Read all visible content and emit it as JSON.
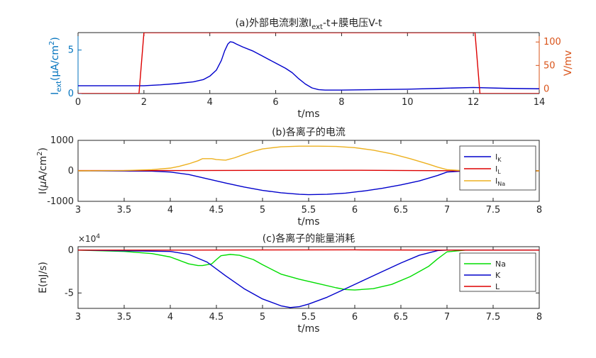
{
  "chart_data": [
    {
      "type": "line",
      "title_main": "(a)外部电流刺激I",
      "title_sub": "ext",
      "title_rest": "-t+膜电压V-t",
      "xlabel": "t/ms",
      "ylabel_left": {
        "base": "I",
        "sub": "ext",
        "unit": "(μA/cm",
        "sup": "2",
        "close": ")"
      },
      "ylabel_right": "V/mv",
      "xlim": [
        0,
        14
      ],
      "ylim_left": [
        0,
        7
      ],
      "ylim_right": [
        -10,
        120
      ],
      "xticks": [
        0,
        2,
        4,
        6,
        8,
        10,
        12,
        14
      ],
      "yticks_left": [
        0,
        5
      ],
      "yticks_right": [
        0,
        50,
        100
      ],
      "colors": {
        "left": "#0072bd",
        "right": "#d95319",
        "series_iext": "#0000cc",
        "series_v": "#dd0000"
      },
      "series": [
        {
          "key": "iext",
          "axis": "left",
          "x": [
            0,
            1,
            2,
            2.5,
            3,
            3.5,
            3.8,
            4.0,
            4.2,
            4.35,
            4.45,
            4.55,
            4.62,
            4.7,
            4.8,
            5.0,
            5.3,
            5.6,
            6.0,
            6.3,
            6.5,
            6.7,
            6.9,
            7.1,
            7.3,
            7.5,
            8,
            9,
            10,
            11,
            12,
            13,
            14
          ],
          "y": [
            0.9,
            0.9,
            0.9,
            1.0,
            1.15,
            1.35,
            1.6,
            2.0,
            2.7,
            3.8,
            4.9,
            5.7,
            5.95,
            5.9,
            5.7,
            5.35,
            4.9,
            4.3,
            3.5,
            2.9,
            2.4,
            1.7,
            1.1,
            0.65,
            0.45,
            0.4,
            0.4,
            0.45,
            0.5,
            0.6,
            0.7,
            0.6,
            0.55
          ]
        },
        {
          "key": "v",
          "axis": "right",
          "x": [
            0,
            1.85,
            2.0,
            2.05,
            11.95,
            12.05,
            12.2,
            14
          ],
          "y": [
            -10,
            -10,
            120,
            120,
            120,
            120,
            -10,
            -10
          ]
        }
      ]
    },
    {
      "type": "line",
      "title": "(b)各离子的电流",
      "xlabel": "t/ms",
      "ylabel": {
        "pre": "I(",
        "mu": "μ",
        "unit": "A/cm",
        "sup": "2",
        "close": ")"
      },
      "xlim": [
        3,
        8
      ],
      "ylim": [
        -1000,
        1000
      ],
      "xticks": [
        3,
        3.5,
        4,
        4.5,
        5,
        5.5,
        6,
        6.5,
        7,
        7.5,
        8
      ],
      "yticks": [
        -1000,
        0,
        1000
      ],
      "legend": {
        "placement": "right",
        "entries": [
          {
            "base": "I",
            "sub": "K"
          },
          {
            "base": "I",
            "sub": "L"
          },
          {
            "base": "I",
            "sub": "Na"
          }
        ]
      },
      "series": [
        {
          "key": "IK",
          "color": "#0000cc",
          "x": [
            3,
            3.8,
            4.0,
            4.2,
            4.4,
            4.6,
            4.8,
            5.0,
            5.2,
            5.4,
            5.5,
            5.7,
            5.9,
            6.1,
            6.3,
            6.5,
            6.7,
            6.9,
            7.0,
            7.2,
            8
          ],
          "y": [
            0,
            -10,
            -40,
            -120,
            -260,
            -400,
            -530,
            -640,
            -720,
            -770,
            -780,
            -770,
            -730,
            -660,
            -570,
            -460,
            -330,
            -150,
            -40,
            0,
            0
          ]
        },
        {
          "key": "IL",
          "color": "#dd0000",
          "x": [
            3,
            4,
            5,
            6,
            7,
            7.2,
            8
          ],
          "y": [
            10,
            10,
            15,
            20,
            5,
            0,
            0
          ]
        },
        {
          "key": "INa",
          "color": "#edb120",
          "x": [
            3,
            3.5,
            3.8,
            4.0,
            4.1,
            4.2,
            4.3,
            4.35,
            4.45,
            4.5,
            4.6,
            4.7,
            4.8,
            4.9,
            5.0,
            5.2,
            5.4,
            5.6,
            5.8,
            6.0,
            6.2,
            6.4,
            6.6,
            6.8,
            6.9,
            7.0,
            7.2,
            8
          ],
          "y": [
            0,
            10,
            40,
            90,
            150,
            230,
            330,
            400,
            400,
            370,
            350,
            430,
            540,
            640,
            720,
            790,
            810,
            810,
            800,
            760,
            680,
            560,
            400,
            220,
            120,
            40,
            0,
            0
          ]
        }
      ]
    },
    {
      "type": "line",
      "title": "(c)各离子的能量消耗",
      "xlabel": "t/ms",
      "ylabel": "E(nJ/s)",
      "exponent": {
        "base": "×10",
        "sup": "4"
      },
      "xlim": [
        3,
        8
      ],
      "ylim": [
        -6.8,
        0.4
      ],
      "xticks": [
        3,
        3.5,
        4,
        4.5,
        5,
        5.5,
        6,
        6.5,
        7,
        7.5,
        8
      ],
      "yticks": [
        -5,
        0
      ],
      "legend": {
        "placement": "right",
        "entries": [
          {
            "base": "Na"
          },
          {
            "base": "K"
          },
          {
            "base": "L"
          }
        ]
      },
      "series": [
        {
          "key": "Na",
          "color": "#00dd00",
          "x": [
            3,
            3.5,
            3.8,
            4.0,
            4.1,
            4.2,
            4.3,
            4.35,
            4.45,
            4.5,
            4.55,
            4.65,
            4.75,
            4.9,
            5.0,
            5.2,
            5.4,
            5.6,
            5.8,
            5.9,
            6.0,
            6.2,
            6.4,
            6.6,
            6.8,
            6.9,
            7.0,
            7.2,
            8
          ],
          "y": [
            0,
            -0.15,
            -0.4,
            -0.8,
            -1.2,
            -1.6,
            -1.8,
            -1.8,
            -1.6,
            -1.1,
            -0.65,
            -0.5,
            -0.6,
            -1.1,
            -1.7,
            -2.8,
            -3.4,
            -3.9,
            -4.4,
            -4.6,
            -4.65,
            -4.5,
            -4.0,
            -3.1,
            -1.9,
            -1.0,
            -0.2,
            0,
            0
          ]
        },
        {
          "key": "K",
          "color": "#0000cc",
          "x": [
            3,
            4.0,
            4.2,
            4.4,
            4.6,
            4.8,
            5.0,
            5.2,
            5.3,
            5.4,
            5.5,
            5.7,
            5.9,
            6.1,
            6.3,
            6.5,
            6.7,
            6.9,
            7.0,
            8
          ],
          "y": [
            0,
            -0.15,
            -0.5,
            -1.4,
            -3.0,
            -4.5,
            -5.7,
            -6.5,
            -6.7,
            -6.6,
            -6.3,
            -5.5,
            -4.5,
            -3.5,
            -2.5,
            -1.5,
            -0.6,
            -0.05,
            0,
            0
          ]
        },
        {
          "key": "L",
          "color": "#dd0000",
          "x": [
            3,
            4,
            5,
            6,
            7,
            8
          ],
          "y": [
            0,
            0,
            0.02,
            0.03,
            0,
            0
          ]
        }
      ]
    }
  ]
}
